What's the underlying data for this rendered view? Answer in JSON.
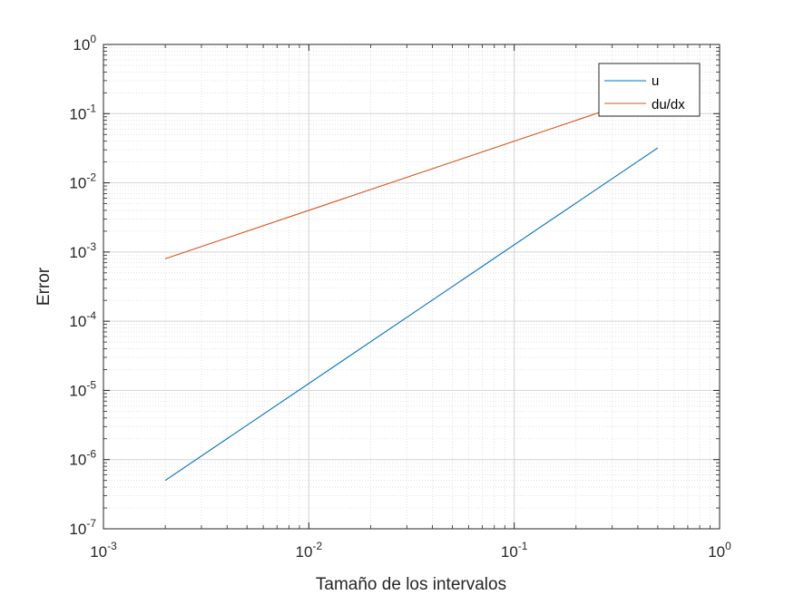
{
  "chart_data": {
    "type": "line",
    "xscale": "log",
    "yscale": "log",
    "xlim": [
      0.001,
      1
    ],
    "ylim": [
      1e-07,
      1
    ],
    "grid": true,
    "minor_grid": true,
    "xlabel": "Tamaño de los intervalos",
    "ylabel": "Error",
    "legend_position": "top-right",
    "x_ticks": [
      {
        "value": 0.001,
        "base": "10",
        "exp": "-3"
      },
      {
        "value": 0.01,
        "base": "10",
        "exp": "-2"
      },
      {
        "value": 0.1,
        "base": "10",
        "exp": "-1"
      },
      {
        "value": 1,
        "base": "10",
        "exp": "0"
      }
    ],
    "y_ticks": [
      {
        "value": 1e-07,
        "base": "10",
        "exp": "-7"
      },
      {
        "value": 1e-06,
        "base": "10",
        "exp": "-6"
      },
      {
        "value": 1e-05,
        "base": "10",
        "exp": "-5"
      },
      {
        "value": 0.0001,
        "base": "10",
        "exp": "-4"
      },
      {
        "value": 0.001,
        "base": "10",
        "exp": "-3"
      },
      {
        "value": 0.01,
        "base": "10",
        "exp": "-2"
      },
      {
        "value": 0.1,
        "base": "10",
        "exp": "-1"
      },
      {
        "value": 1,
        "base": "10",
        "exp": "0"
      }
    ],
    "series": [
      {
        "name": "u",
        "color": "#0072BD",
        "x": [
          0.002,
          0.5
        ],
        "y": [
          5e-07,
          0.032
        ]
      },
      {
        "name": "du/dx",
        "color": "#D95319",
        "x": [
          0.002,
          0.5
        ],
        "y": [
          0.0008,
          0.2
        ]
      }
    ]
  }
}
